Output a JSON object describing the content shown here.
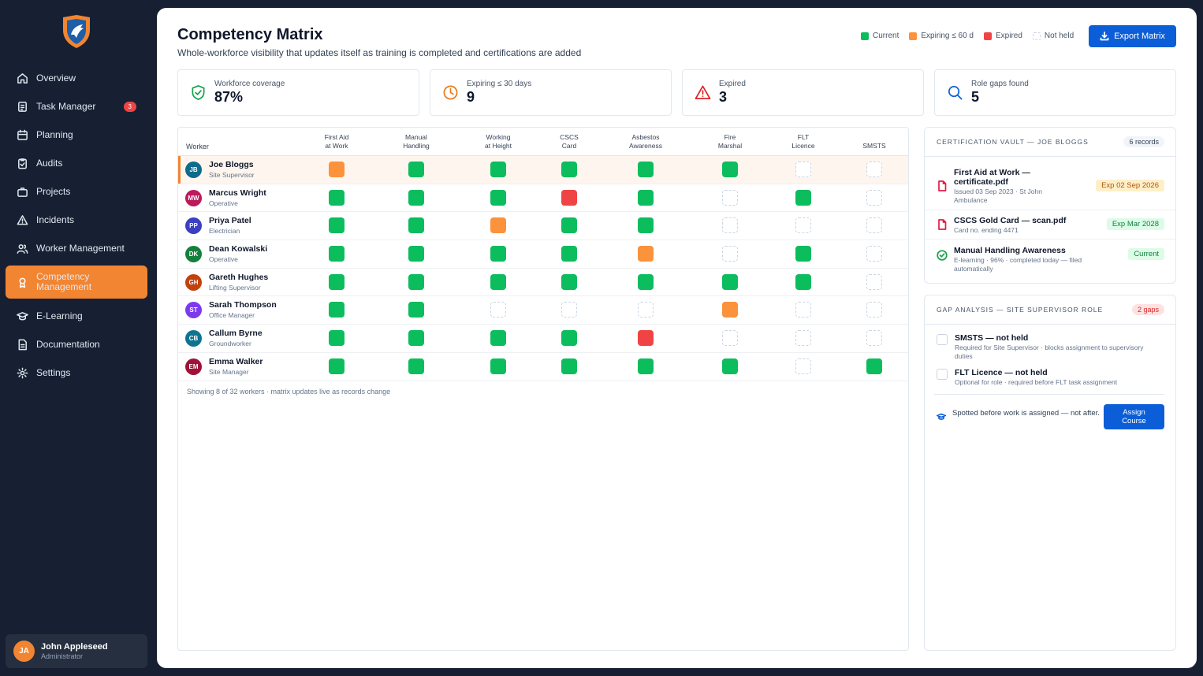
{
  "sidebar": {
    "items": [
      {
        "label": "Overview",
        "icon": "home-icon"
      },
      {
        "label": "Task Manager",
        "icon": "clipboard-icon",
        "badge": "3"
      },
      {
        "label": "Planning",
        "icon": "calendar-icon"
      },
      {
        "label": "Audits",
        "icon": "clipboard-check-icon"
      },
      {
        "label": "Projects",
        "icon": "briefcase-icon"
      },
      {
        "label": "Incidents",
        "icon": "warning-icon"
      },
      {
        "label": "Worker Management",
        "icon": "users-icon"
      },
      {
        "label": "Competency Management",
        "icon": "award-icon",
        "active": true
      },
      {
        "label": "E-Learning",
        "icon": "graduation-cap-icon"
      },
      {
        "label": "Documentation",
        "icon": "document-icon"
      },
      {
        "label": "Settings",
        "icon": "gear-icon"
      }
    ],
    "user": {
      "initials": "JA",
      "name": "John Appleseed",
      "role": "Administrator"
    }
  },
  "header": {
    "title": "Competency Matrix",
    "subtitle": "Whole-workforce visibility that updates itself as training is completed and certifications are added",
    "legend": [
      {
        "label": "Current",
        "color": "#0cbd5d"
      },
      {
        "label": "Expiring ≤ 60 d",
        "color": "#fb923c"
      },
      {
        "label": "Expired",
        "color": "#f04444"
      },
      {
        "label": "Not held",
        "color": "#ffffff"
      }
    ],
    "export_label": "Export Matrix"
  },
  "stats": [
    {
      "label": "Workforce coverage",
      "value": "87%",
      "icon": "shield-check-icon",
      "color": "#16a34a"
    },
    {
      "label": "Expiring ≤ 30 days",
      "value": "9",
      "icon": "clock-icon",
      "color": "#ea7a1a"
    },
    {
      "label": "Expired",
      "value": "3",
      "icon": "warning-icon",
      "color": "#dc2626"
    },
    {
      "label": "Role gaps found",
      "value": "5",
      "icon": "search-icon",
      "color": "#0b5ed7"
    }
  ],
  "matrix": {
    "worker_header": "Worker",
    "columns": [
      [
        "First Aid",
        "at Work"
      ],
      [
        "Manual",
        "Handling"
      ],
      [
        "Working",
        "at Height"
      ],
      [
        "CSCS",
        "Card"
      ],
      [
        "Asbestos",
        "Awareness"
      ],
      [
        "Fire",
        "Marshal"
      ],
      [
        "FLT",
        "Licence"
      ],
      [
        "SMSTS",
        ""
      ]
    ],
    "status_key": {
      "c": "Current",
      "e": "Expiring",
      "x": "Expired",
      "n": "Not held"
    },
    "rows": [
      {
        "initials": "JB",
        "name": "Joe Bloggs",
        "role": "Site Supervisor",
        "color": "#0e6b8a",
        "selected": true,
        "cells": [
          "e",
          "c",
          "c",
          "c",
          "c",
          "c",
          "n",
          "n"
        ]
      },
      {
        "initials": "MW",
        "name": "Marcus Wright",
        "role": "Operative",
        "color": "#be185d",
        "cells": [
          "c",
          "c",
          "c",
          "x",
          "c",
          "n",
          "c",
          "n"
        ]
      },
      {
        "initials": "PP",
        "name": "Priya Patel",
        "role": "Electrician",
        "color": "#3b3fc1",
        "cells": [
          "c",
          "c",
          "e",
          "c",
          "c",
          "n",
          "n",
          "n"
        ]
      },
      {
        "initials": "DK",
        "name": "Dean Kowalski",
        "role": "Operative",
        "color": "#15803d",
        "cells": [
          "c",
          "c",
          "c",
          "c",
          "e",
          "n",
          "c",
          "n"
        ]
      },
      {
        "initials": "GH",
        "name": "Gareth Hughes",
        "role": "Lifting Supervisor",
        "color": "#c2410c",
        "cells": [
          "c",
          "c",
          "c",
          "c",
          "c",
          "c",
          "c",
          "n"
        ]
      },
      {
        "initials": "ST",
        "name": "Sarah Thompson",
        "role": "Office Manager",
        "color": "#7c3aed",
        "cells": [
          "c",
          "c",
          "n",
          "n",
          "n",
          "e",
          "n",
          "n"
        ]
      },
      {
        "initials": "CB",
        "name": "Callum Byrne",
        "role": "Groundworker",
        "color": "#0e7490",
        "cells": [
          "c",
          "c",
          "c",
          "c",
          "x",
          "n",
          "n",
          "n"
        ]
      },
      {
        "initials": "EM",
        "name": "Emma Walker",
        "role": "Site Manager",
        "color": "#9f1239",
        "cells": [
          "c",
          "c",
          "c",
          "c",
          "c",
          "c",
          "n",
          "c"
        ]
      }
    ],
    "footer": "Showing 8 of 32 workers · matrix updates live as records change"
  },
  "vault": {
    "title": "CERTIFICATION VAULT — JOE BLOGGS",
    "count": "6 records",
    "items": [
      {
        "title": "First Aid at Work — certificate.pdf",
        "sub": "Issued 03 Sep 2023 · St John Ambulance",
        "badge": "Exp 02 Sep 2026",
        "tone": "amber",
        "icon": "pdf-file-icon"
      },
      {
        "title": "CSCS Gold Card — scan.pdf",
        "sub": "Card no. ending 4471",
        "badge": "Exp Mar 2028",
        "tone": "green",
        "icon": "pdf-file-icon"
      },
      {
        "title": "Manual Handling Awareness",
        "sub": "E-learning · 96% · completed today — filed automatically",
        "badge": "Current",
        "tone": "green",
        "icon": "check-circle-icon"
      }
    ]
  },
  "gaps": {
    "title": "GAP ANALYSIS — SITE SUPERVISOR ROLE",
    "count": "2 gaps",
    "items": [
      {
        "title": "SMSTS — not held",
        "sub": "Required for Site Supervisor · blocks assignment to supervisory duties"
      },
      {
        "title": "FLT Licence — not held",
        "sub": "Optional for role · required before FLT task assignment"
      }
    ],
    "note": "Spotted before work is assigned — not after.",
    "assign_label": "Assign Course"
  }
}
